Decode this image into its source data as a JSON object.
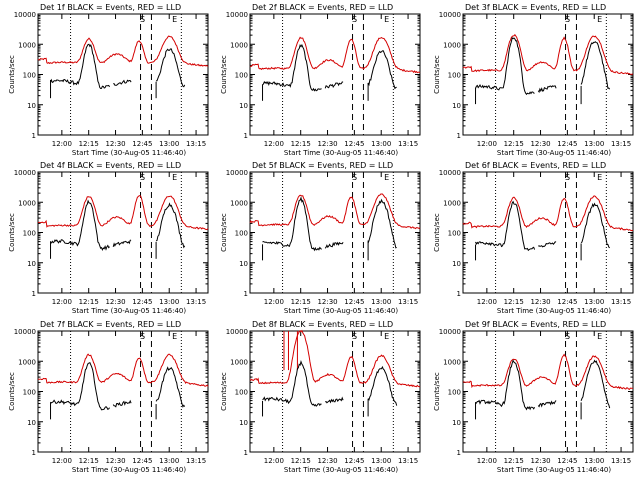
{
  "chart_data": {
    "type": "line",
    "scale": "log",
    "ylim": [
      1,
      10000
    ],
    "ytick_labels": [
      "1",
      "10",
      "100",
      "1000",
      "10000"
    ],
    "ylabel": "Counts/sec",
    "xlabel": "Start Time (30-Aug-05 11:46:40)",
    "xlim_minutes_since_start": [
      0,
      95
    ],
    "xticks_minutes_since_start": [
      13.33,
      28.33,
      43.33,
      58.33,
      73.33,
      88.33
    ],
    "xtick_labels": [
      "12:00",
      "12:15",
      "12:30",
      "12:45",
      "13:00",
      "13:15"
    ],
    "markers": {
      "S": {
        "label": "S",
        "minutes": 58.4
      },
      "E": {
        "label": "E",
        "minutes": 76.4
      },
      "dashed_minutes": [
        57.3,
        63.4
      ],
      "dotted_minutes": [
        18.2,
        80.1
      ]
    },
    "series_names": [
      "Events (BLACK)",
      "LLD (RED)"
    ],
    "series_colors": {
      "events": "#000000",
      "lld": "#d40000"
    },
    "panels": [
      {
        "title": "Det 1f BLACK = Events, RED = LLD",
        "peaks": [
          1500,
          1300,
          1750
        ],
        "events_peaks": [
          1000,
          0,
          700
        ],
        "baseline_lld": 220,
        "baseline_events": 55
      },
      {
        "title": "Det 2f BLACK = Events, RED = LLD",
        "peaks": [
          1650,
          1450,
          1650
        ],
        "events_peaks": [
          900,
          0,
          600
        ],
        "baseline_lld": 140,
        "baseline_events": 45
      },
      {
        "title": "Det 3f BLACK = Events, RED = LLD",
        "peaks": [
          2000,
          1600,
          1850
        ],
        "events_peaks": [
          1700,
          0,
          1200
        ],
        "baseline_lld": 120,
        "baseline_events": 35
      },
      {
        "title": "Det 4f BLACK = Events, RED = LLD",
        "peaks": [
          1550,
          1700,
          1600
        ],
        "events_peaks": [
          1050,
          0,
          850
        ],
        "baseline_lld": 150,
        "baseline_events": 45
      },
      {
        "title": "Det 5f BLACK = Events, RED = LLD",
        "peaks": [
          1700,
          1500,
          1800
        ],
        "events_peaks": [
          1250,
          0,
          1100
        ],
        "baseline_lld": 160,
        "baseline_events": 40
      },
      {
        "title": "Det 6f BLACK = Events, RED = LLD",
        "peaks": [
          1400,
          1300,
          1550
        ],
        "events_peaks": [
          1000,
          0,
          850
        ],
        "baseline_lld": 140,
        "baseline_events": 40
      },
      {
        "title": "Det 7f BLACK = Events, RED = LLD",
        "peaks": [
          1650,
          1300,
          1600
        ],
        "events_peaks": [
          850,
          0,
          600
        ],
        "baseline_lld": 180,
        "baseline_events": 40
      },
      {
        "title": "Det 8f BLACK = Events, RED = LLD",
        "peaks": [
          10000,
          1400,
          1500
        ],
        "events_peaks": [
          900,
          0,
          650
        ],
        "baseline_lld": 170,
        "baseline_events": 50
      },
      {
        "title": "Det 9f BLACK = Events, RED = LLD",
        "peaks": [
          1200,
          1600,
          1450
        ],
        "events_peaks": [
          1000,
          0,
          1000
        ],
        "baseline_lld": 140,
        "baseline_events": 40
      }
    ]
  }
}
